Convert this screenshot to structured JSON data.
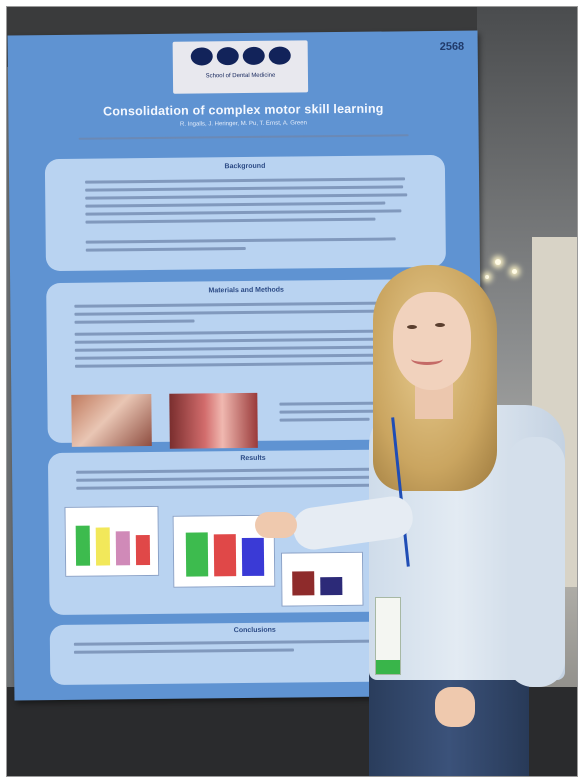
{
  "poster": {
    "number": "2568",
    "logo_text": "School of Dental Medicine",
    "title": "Consolidation of complex motor skill learning",
    "authors": "R. Ingalls, J. Heringer, M. Pu, T. Ernst, A. Green",
    "sections": {
      "background": "Background",
      "methods": "Materials and Methods",
      "results": "Results",
      "conclusion": "Conclusions"
    }
  },
  "colors": {
    "poster_blue": "#5f93d2",
    "panel_blue": "#b9d3f1",
    "chart_green": "#3dbb4e",
    "chart_yellow": "#f2e85a",
    "chart_pink": "#d08ab8",
    "chart_red": "#e04848",
    "chart_blue": "#3a3ad6",
    "chart_maroon": "#8e2b2b",
    "chart_navy": "#2c2a78"
  },
  "icons": {
    "university_logo": "logo-mark",
    "dental_photo_1": "photo",
    "dental_photo_2": "photo"
  }
}
